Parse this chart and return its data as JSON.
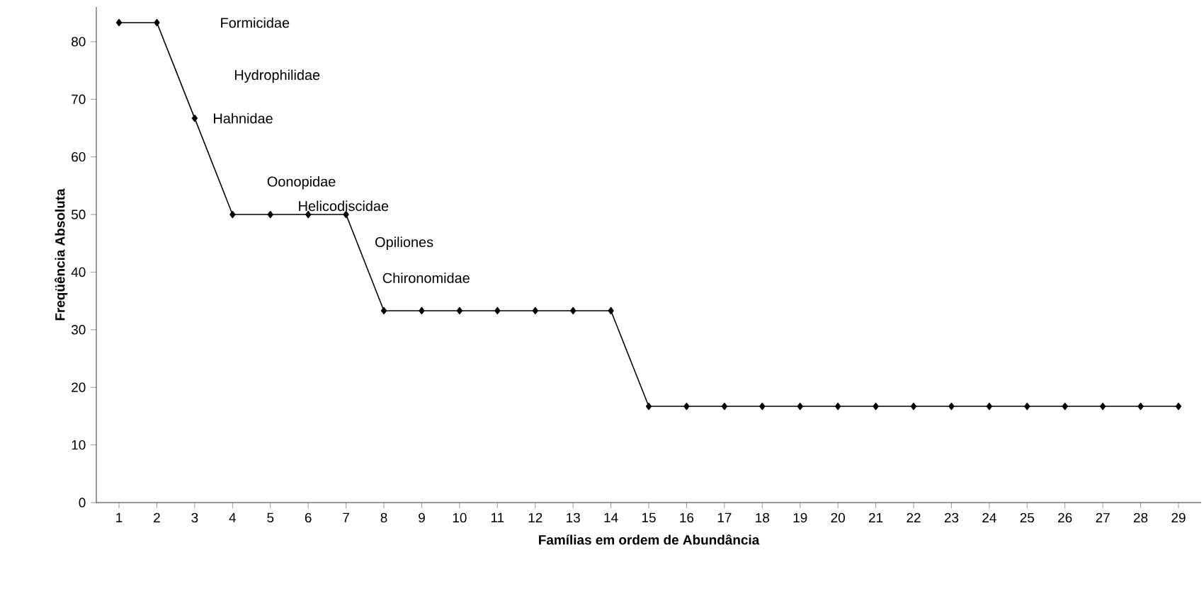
{
  "chart_data": {
    "type": "line",
    "xlabel": "Famílias em ordem de Abundância",
    "ylabel": "Freqüência Absoluta",
    "categories": [
      "1",
      "2",
      "3",
      "4",
      "5",
      "6",
      "7",
      "8",
      "9",
      "10",
      "11",
      "12",
      "13",
      "14",
      "15",
      "16",
      "17",
      "18",
      "19",
      "20",
      "21",
      "22",
      "23",
      "24",
      "25",
      "26",
      "27",
      "28",
      "29"
    ],
    "series": [
      {
        "color": "#000000",
        "values": [
          83.3,
          83.3,
          66.7,
          50,
          50,
          50,
          50,
          33.3,
          33.3,
          33.3,
          33.3,
          33.3,
          33.3,
          33.3,
          16.7,
          16.7,
          16.7,
          16.7,
          16.7,
          16.7,
          16.7,
          16.7,
          16.7,
          16.7,
          16.7,
          16.7,
          16.7,
          16.7,
          16.7
        ]
      }
    ],
    "ylim": [
      0,
      86
    ],
    "yticks": [
      0,
      10,
      20,
      30,
      40,
      50,
      60,
      70,
      80
    ],
    "marker": "diamond",
    "line_style": "solid",
    "annotations": [
      "Formicidae",
      "Hydrophilidae",
      "Hahnidae",
      "Oonopidae",
      "Helicodiscidae",
      "Opiliones",
      "Chironomidae"
    ]
  }
}
